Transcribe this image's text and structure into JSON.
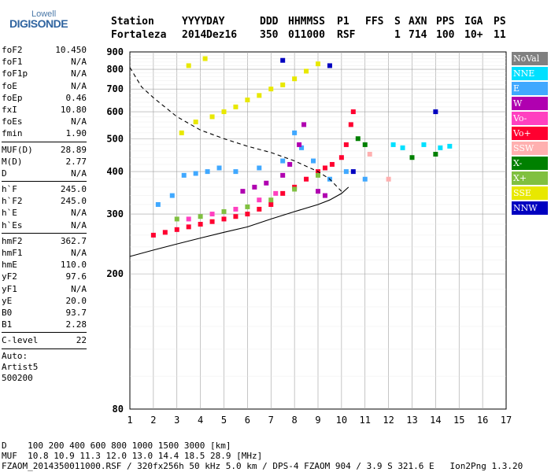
{
  "logo": {
    "top": "Lowell",
    "main": "DIGISONDE"
  },
  "header": {
    "labels": [
      "Station",
      "YYYY",
      "DAY",
      "DDD",
      "HHMMSS",
      "P1",
      "FFS",
      "S",
      "AXN",
      "PPS",
      "IGA",
      "PS"
    ],
    "values": [
      "Fortaleza",
      "2014",
      "Dez16",
      "350",
      "011000",
      "RSF",
      "1",
      "714",
      "100",
      "10+",
      "11"
    ]
  },
  "params_group1": [
    {
      "k": "foF2",
      "v": "10.450"
    },
    {
      "k": "foF1",
      "v": "N/A"
    },
    {
      "k": "foF1p",
      "v": "N/A"
    },
    {
      "k": "foE",
      "v": "N/A"
    },
    {
      "k": "foEp",
      "v": "0.46"
    },
    {
      "k": "fxI",
      "v": "10.80"
    },
    {
      "k": "foEs",
      "v": "N/A"
    },
    {
      "k": "fmin",
      "v": "1.90"
    }
  ],
  "params_group2": [
    {
      "k": "MUF(D)",
      "v": "28.89"
    },
    {
      "k": "M(D)",
      "v": "2.77"
    },
    {
      "k": "D",
      "v": "N/A"
    }
  ],
  "params_group3": [
    {
      "k": "h`F",
      "v": "245.0"
    },
    {
      "k": "h`F2",
      "v": "245.0"
    },
    {
      "k": "h`E",
      "v": "N/A"
    },
    {
      "k": "h`Es",
      "v": "N/A"
    }
  ],
  "params_group4": [
    {
      "k": "hmF2",
      "v": "362.7"
    },
    {
      "k": "hmF1",
      "v": "N/A"
    },
    {
      "k": "hmE",
      "v": "110.0"
    },
    {
      "k": "yF2",
      "v": "97.6"
    },
    {
      "k": "yF1",
      "v": "N/A"
    },
    {
      "k": "yE",
      "v": "20.0"
    },
    {
      "k": "B0",
      "v": "93.7"
    },
    {
      "k": "B1",
      "v": "2.28"
    }
  ],
  "params_group5": [
    {
      "k": "C-level",
      "v": "22"
    }
  ],
  "auto_text": [
    "Auto:",
    "Artist5",
    "500200"
  ],
  "legend": [
    {
      "label": "NoVal",
      "color": "#808080"
    },
    {
      "label": "NNE",
      "color": "#00e0ff"
    },
    {
      "label": "E",
      "color": "#40a8ff"
    },
    {
      "label": "W",
      "color": "#b000b0"
    },
    {
      "label": "Vo-",
      "color": "#ff40c0"
    },
    {
      "label": "Vo+",
      "color": "#ff0030"
    },
    {
      "label": "SSW",
      "color": "#ffb0b0"
    },
    {
      "label": "X-",
      "color": "#008000"
    },
    {
      "label": "X+",
      "color": "#80c040"
    },
    {
      "label": "SSE",
      "color": "#e8e800"
    },
    {
      "label": "NNW",
      "color": "#0000c0"
    }
  ],
  "footer": {
    "d_label": "D",
    "d_values": [
      "100",
      "200",
      "400",
      "600",
      "800",
      "1000",
      "1500",
      "3000"
    ],
    "d_unit": "[km]",
    "muf_label": "MUF",
    "muf_values": [
      "10.8",
      "10.9",
      "11.3",
      "12.0",
      "13.0",
      "14.4",
      "18.5",
      "28.9"
    ],
    "muf_unit": "[MHz]",
    "file_line": "FZAOM_2014350011000.RSF / 320fx256h 50 kHz 5.0 km / DPS-4 FZAOM 904 / 3.9 S 321.6 E   Ion2Png 1.3.20"
  },
  "chart_data": {
    "type": "scatter",
    "title": "",
    "xlabel": "",
    "ylabel": "",
    "xlim": [
      1,
      17
    ],
    "ylim": [
      80,
      900
    ],
    "x_ticks": [
      1,
      2,
      3,
      4,
      5,
      6,
      7,
      8,
      9,
      10,
      11,
      12,
      13,
      14,
      15,
      16,
      17
    ],
    "y_ticks": [
      80,
      200,
      300,
      400,
      500,
      600,
      700,
      800,
      900
    ],
    "y_scale": "log",
    "grid": true,
    "legend_placement": "right",
    "series": [
      {
        "name": "E",
        "points": [
          [
            2.2,
            320
          ],
          [
            2.8,
            340
          ],
          [
            3.3,
            390
          ],
          [
            3.8,
            395
          ],
          [
            4.3,
            400
          ],
          [
            4.8,
            410
          ],
          [
            5.5,
            400
          ],
          [
            6.5,
            410
          ],
          [
            7.5,
            430
          ],
          [
            8,
            520
          ],
          [
            8.3,
            470
          ],
          [
            8.8,
            430
          ],
          [
            9.5,
            380
          ],
          [
            10.2,
            400
          ],
          [
            11,
            380
          ]
        ]
      },
      {
        "name": "NNE",
        "points": [
          [
            12.2,
            480
          ],
          [
            12.6,
            470
          ],
          [
            13.5,
            480
          ],
          [
            14.2,
            470
          ],
          [
            14.6,
            475
          ]
        ]
      },
      {
        "name": "W",
        "points": [
          [
            5.8,
            350
          ],
          [
            6.3,
            360
          ],
          [
            6.8,
            370
          ],
          [
            7.5,
            390
          ],
          [
            7.8,
            420
          ],
          [
            8.2,
            480
          ],
          [
            8.4,
            550
          ],
          [
            9,
            350
          ],
          [
            9.3,
            340
          ]
        ]
      },
      {
        "name": "Vo-",
        "points": [
          [
            3.5,
            290
          ],
          [
            4.5,
            300
          ],
          [
            5.5,
            310
          ],
          [
            6.5,
            330
          ],
          [
            7.2,
            345
          ]
        ]
      },
      {
        "name": "Vo+",
        "points": [
          [
            2,
            260
          ],
          [
            2.5,
            265
          ],
          [
            3,
            270
          ],
          [
            3.5,
            275
          ],
          [
            4,
            280
          ],
          [
            4.5,
            285
          ],
          [
            5,
            290
          ],
          [
            5.5,
            295
          ],
          [
            6,
            300
          ],
          [
            6.5,
            310
          ],
          [
            7,
            320
          ],
          [
            7.5,
            345
          ],
          [
            8,
            360
          ],
          [
            8.5,
            380
          ],
          [
            9,
            400
          ],
          [
            9.3,
            410
          ],
          [
            9.6,
            420
          ],
          [
            10,
            440
          ],
          [
            10.2,
            480
          ],
          [
            10.4,
            550
          ],
          [
            10.5,
            600
          ]
        ]
      },
      {
        "name": "SSW",
        "points": [
          [
            11.2,
            450
          ],
          [
            12,
            380
          ]
        ]
      },
      {
        "name": "X-",
        "points": [
          [
            10.7,
            500
          ],
          [
            11,
            480
          ],
          [
            13,
            440
          ],
          [
            14,
            450
          ]
        ]
      },
      {
        "name": "X+",
        "points": [
          [
            3,
            290
          ],
          [
            4,
            295
          ],
          [
            5,
            305
          ],
          [
            6,
            315
          ],
          [
            7,
            330
          ],
          [
            8,
            355
          ],
          [
            9,
            390
          ]
        ]
      },
      {
        "name": "SSE",
        "points": [
          [
            3.2,
            520
          ],
          [
            3.8,
            560
          ],
          [
            4.5,
            580
          ],
          [
            5,
            600
          ],
          [
            5.5,
            620
          ],
          [
            6,
            650
          ],
          [
            6.5,
            670
          ],
          [
            7,
            700
          ],
          [
            7.5,
            720
          ],
          [
            8,
            750
          ],
          [
            8.5,
            790
          ],
          [
            9,
            830
          ],
          [
            3.5,
            820
          ],
          [
            4.2,
            860
          ]
        ]
      },
      {
        "name": "NNW",
        "points": [
          [
            7.5,
            850
          ],
          [
            9.5,
            820
          ],
          [
            10.5,
            400
          ],
          [
            14,
            600
          ]
        ]
      }
    ],
    "lines": [
      {
        "name": "true-height-profile",
        "style": "solid",
        "points": [
          [
            1,
            225
          ],
          [
            2,
            235
          ],
          [
            3,
            245
          ],
          [
            4,
            255
          ],
          [
            5,
            265
          ],
          [
            6,
            275
          ],
          [
            7,
            290
          ],
          [
            8,
            305
          ],
          [
            9,
            320
          ],
          [
            9.5,
            330
          ],
          [
            10,
            345
          ],
          [
            10.3,
            360
          ]
        ]
      },
      {
        "name": "mode-trace",
        "style": "dashed",
        "points": [
          [
            1,
            810
          ],
          [
            1.5,
            710
          ],
          [
            2,
            660
          ],
          [
            3,
            580
          ],
          [
            4,
            530
          ],
          [
            5,
            500
          ],
          [
            6,
            475
          ],
          [
            7,
            455
          ],
          [
            8,
            430
          ],
          [
            9,
            400
          ],
          [
            9.5,
            380
          ],
          [
            10,
            350
          ]
        ]
      }
    ]
  }
}
